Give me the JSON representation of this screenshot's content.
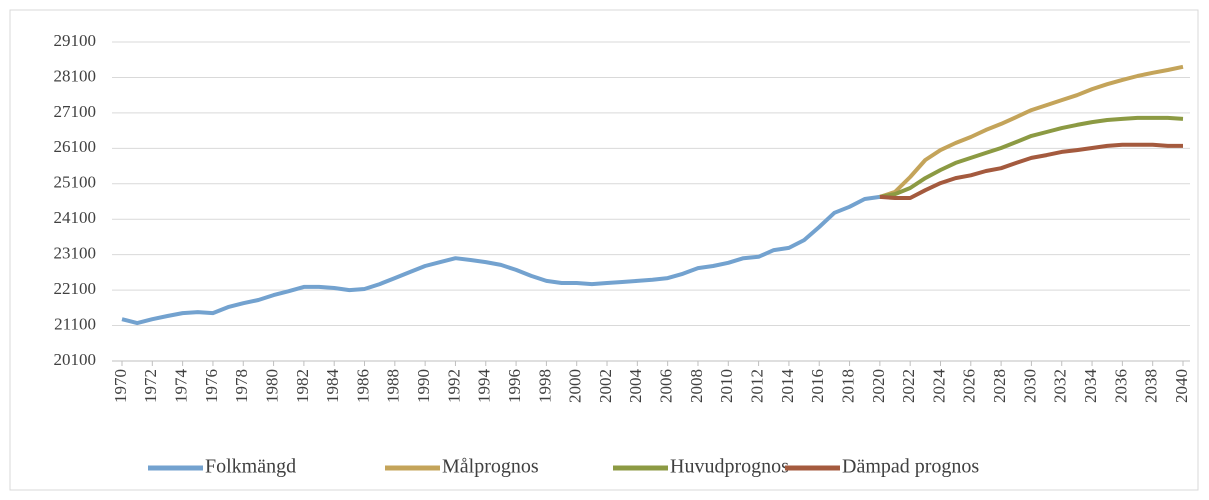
{
  "chart_data": {
    "type": "line",
    "x": [
      1970,
      1971,
      1972,
      1973,
      1974,
      1975,
      1976,
      1977,
      1978,
      1979,
      1980,
      1981,
      1982,
      1983,
      1984,
      1985,
      1986,
      1987,
      1988,
      1989,
      1990,
      1991,
      1992,
      1993,
      1994,
      1995,
      1996,
      1997,
      1998,
      1999,
      2000,
      2001,
      2002,
      2003,
      2004,
      2005,
      2006,
      2007,
      2008,
      2009,
      2010,
      2011,
      2012,
      2013,
      2014,
      2015,
      2016,
      2017,
      2018,
      2019,
      2020,
      2021,
      2022,
      2023,
      2024,
      2025,
      2026,
      2027,
      2028,
      2029,
      2030,
      2031,
      2032,
      2033,
      2034,
      2035,
      2036,
      2037,
      2038,
      2039,
      2040
    ],
    "xlim": [
      1970,
      2040
    ],
    "xticks": [
      1970,
      1972,
      1974,
      1976,
      1978,
      1980,
      1982,
      1984,
      1986,
      1988,
      1990,
      1992,
      1994,
      1996,
      1998,
      2000,
      2002,
      2004,
      2006,
      2008,
      2010,
      2012,
      2014,
      2016,
      2018,
      2020,
      2022,
      2024,
      2026,
      2028,
      2030,
      2032,
      2034,
      2036,
      2038,
      2040
    ],
    "ylim": [
      20100,
      29100
    ],
    "yticks": [
      20100,
      21100,
      22100,
      23100,
      24100,
      25100,
      26100,
      27100,
      28100,
      29100
    ],
    "grid": true,
    "series": [
      {
        "name": "Folkmängd",
        "color": "#73a2cf",
        "values": [
          21280,
          21170,
          21280,
          21370,
          21450,
          21480,
          21450,
          21620,
          21730,
          21820,
          21960,
          22070,
          22190,
          22190,
          22160,
          22100,
          22130,
          22270,
          22440,
          22610,
          22780,
          22890,
          23000,
          22950,
          22890,
          22810,
          22670,
          22500,
          22360,
          22300,
          22300,
          22270,
          22300,
          22330,
          22360,
          22390,
          22440,
          22560,
          22720,
          22780,
          22870,
          23000,
          23040,
          23230,
          23290,
          23510,
          23880,
          24280,
          24450,
          24670,
          24730,
          null,
          null,
          null,
          null,
          null,
          null,
          null,
          null,
          null,
          null,
          null,
          null,
          null,
          null,
          null,
          null,
          null,
          null,
          null,
          null
        ]
      },
      {
        "name": "Målprognos",
        "color": "#c4a45a",
        "values": [
          null,
          null,
          null,
          null,
          null,
          null,
          null,
          null,
          null,
          null,
          null,
          null,
          null,
          null,
          null,
          null,
          null,
          null,
          null,
          null,
          null,
          null,
          null,
          null,
          null,
          null,
          null,
          null,
          null,
          null,
          null,
          null,
          null,
          null,
          null,
          null,
          null,
          null,
          null,
          null,
          null,
          null,
          null,
          null,
          null,
          null,
          null,
          null,
          null,
          null,
          24730,
          24870,
          25290,
          25770,
          26050,
          26250,
          26420,
          26620,
          26790,
          26980,
          27180,
          27320,
          27460,
          27600,
          27770,
          27910,
          28030,
          28140,
          28230,
          28310,
          28400
        ]
      },
      {
        "name": "Huvudprognos",
        "color": "#8c9a43",
        "values": [
          null,
          null,
          null,
          null,
          null,
          null,
          null,
          null,
          null,
          null,
          null,
          null,
          null,
          null,
          null,
          null,
          null,
          null,
          null,
          null,
          null,
          null,
          null,
          null,
          null,
          null,
          null,
          null,
          null,
          null,
          null,
          null,
          null,
          null,
          null,
          null,
          null,
          null,
          null,
          null,
          null,
          null,
          null,
          null,
          null,
          null,
          null,
          null,
          null,
          null,
          24730,
          24810,
          24980,
          25260,
          25490,
          25690,
          25830,
          25970,
          26110,
          26280,
          26450,
          26560,
          26670,
          26760,
          26840,
          26900,
          26930,
          26960,
          26960,
          26960,
          26930
        ]
      },
      {
        "name": "Dämpad prognos",
        "color": "#a45a3e",
        "values": [
          null,
          null,
          null,
          null,
          null,
          null,
          null,
          null,
          null,
          null,
          null,
          null,
          null,
          null,
          null,
          null,
          null,
          null,
          null,
          null,
          null,
          null,
          null,
          null,
          null,
          null,
          null,
          null,
          null,
          null,
          null,
          null,
          null,
          null,
          null,
          null,
          null,
          null,
          null,
          null,
          null,
          null,
          null,
          null,
          null,
          null,
          null,
          null,
          null,
          null,
          24730,
          24700,
          24700,
          24920,
          25120,
          25260,
          25340,
          25460,
          25540,
          25690,
          25830,
          25910,
          26000,
          26050,
          26110,
          26170,
          26200,
          26200,
          26200,
          26170,
          26170
        ]
      }
    ]
  }
}
